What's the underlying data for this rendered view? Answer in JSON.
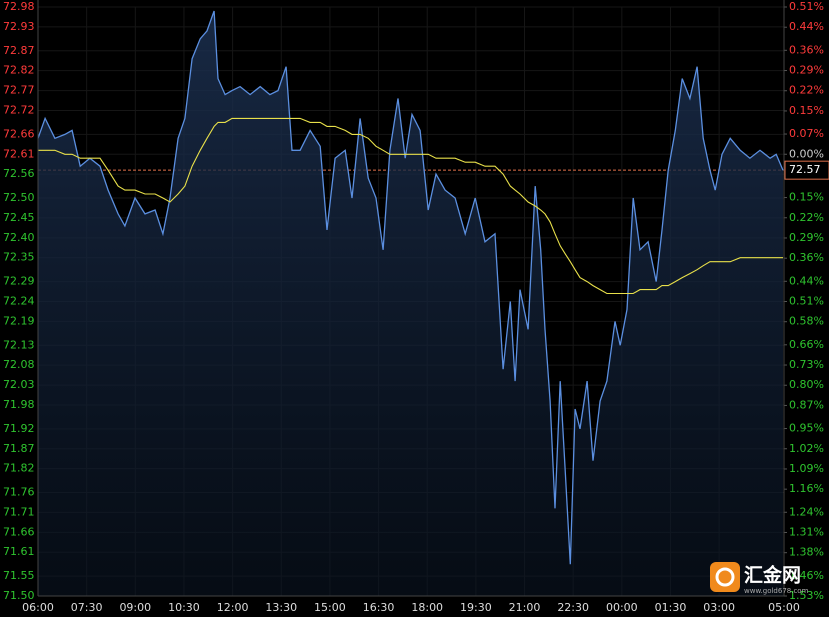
{
  "chart_data": {
    "type": "line",
    "xlim": [
      0,
      23
    ],
    "xticks": [
      {
        "value": 0,
        "label": "06:00"
      },
      {
        "value": 1.5,
        "label": "07:30"
      },
      {
        "value": 3,
        "label": "09:00"
      },
      {
        "value": 4.5,
        "label": "10:30"
      },
      {
        "value": 6,
        "label": "12:00"
      },
      {
        "value": 7.5,
        "label": "13:30"
      },
      {
        "value": 9,
        "label": "15:00"
      },
      {
        "value": 10.5,
        "label": "16:30"
      },
      {
        "value": 12,
        "label": "18:00"
      },
      {
        "value": 13.5,
        "label": "19:30"
      },
      {
        "value": 15,
        "label": "21:00"
      },
      {
        "value": 16.5,
        "label": "22:30"
      },
      {
        "value": 18,
        "label": "00:00"
      },
      {
        "value": 19.5,
        "label": "01:30"
      },
      {
        "value": 21,
        "label": "03:00"
      },
      {
        "value": 23,
        "label": "05:00"
      }
    ],
    "ylim": [
      71.5,
      72.98
    ],
    "yticks": [
      72.98,
      72.93,
      72.87,
      72.82,
      72.77,
      72.72,
      72.66,
      72.61,
      72.56,
      {
        "value": 72.5,
        "label": "72.50"
      },
      72.45,
      {
        "value": 72.4,
        "label": "72.40"
      },
      72.35,
      72.29,
      72.24,
      72.19,
      72.13,
      72.08,
      72.03,
      71.98,
      71.92,
      71.87,
      71.82,
      71.76,
      71.71,
      71.66,
      71.61,
      71.55,
      {
        "value": 71.5,
        "label": "71.50"
      }
    ],
    "y2lim": [
      -1.53,
      0.51
    ],
    "y2ticks": [
      {
        "value": 0.51,
        "label": "0.51%"
      },
      {
        "value": 0.44,
        "label": "0.44%"
      },
      {
        "value": 0.36,
        "label": "0.36%"
      },
      {
        "value": 0.29,
        "label": "0.29%"
      },
      {
        "value": 0.22,
        "label": "0.22%"
      },
      {
        "value": 0.15,
        "label": "0.15%"
      },
      {
        "value": 0.07,
        "label": "0.07%"
      },
      {
        "value": 0,
        "label": "0.00%"
      },
      {
        "value": -0.15,
        "label": "0.15%"
      },
      {
        "value": -0.22,
        "label": "0.22%"
      },
      {
        "value": -0.29,
        "label": "0.29%"
      },
      {
        "value": -0.36,
        "label": "0.36%"
      },
      {
        "value": -0.44,
        "label": "0.44%"
      },
      {
        "value": -0.51,
        "label": "0.51%"
      },
      {
        "value": -0.58,
        "label": "0.58%"
      },
      {
        "value": -0.66,
        "label": "0.66%"
      },
      {
        "value": -0.73,
        "label": "0.73%"
      },
      {
        "value": -0.8,
        "label": "0.80%"
      },
      {
        "value": -0.87,
        "label": "0.87%"
      },
      {
        "value": -0.95,
        "label": "0.95%"
      },
      {
        "value": -1.02,
        "label": "1.02%"
      },
      {
        "value": -1.09,
        "label": "1.09%"
      },
      {
        "value": -1.16,
        "label": "1.16%"
      },
      {
        "value": -1.24,
        "label": "1.24%"
      },
      {
        "value": -1.31,
        "label": "1.31%"
      },
      {
        "value": -1.38,
        "label": "1.38%"
      },
      {
        "value": -1.46,
        "label": "1.46%"
      },
      {
        "value": -1.53,
        "label": "1.53%"
      }
    ],
    "ref_price": 72.57,
    "grid": true,
    "x": [
      0,
      0.22,
      0.52,
      0.83,
      1.05,
      1.3,
      1.6,
      1.91,
      2.16,
      2.47,
      2.68,
      2.99,
      3.3,
      3.61,
      3.85,
      4.07,
      4.32,
      4.53,
      4.75,
      5,
      5.21,
      5.43,
      5.55,
      5.77,
      5.98,
      6.23,
      6.54,
      6.85,
      7.15,
      7.4,
      7.65,
      7.83,
      8.08,
      8.39,
      8.7,
      8.91,
      9.16,
      9.47,
      9.68,
      9.93,
      10.18,
      10.42,
      10.64,
      10.85,
      11.1,
      11.32,
      11.53,
      11.78,
      12.03,
      12.27,
      12.55,
      12.86,
      13.17,
      13.48,
      13.78,
      14.09,
      14.34,
      14.56,
      14.71,
      14.86,
      15.11,
      15.33,
      15.5,
      15.63,
      15.79,
      15.94,
      16.1,
      16.25,
      16.41,
      16.56,
      16.71,
      16.93,
      17.11,
      17.33,
      17.54,
      17.79,
      17.95,
      18.16,
      18.35,
      18.56,
      18.81,
      19.06,
      19.24,
      19.43,
      19.65,
      19.86,
      20.1,
      20.32,
      20.51,
      20.72,
      20.88,
      21.09,
      21.34,
      21.65,
      21.95,
      22.26,
      22.57,
      22.76,
      22.97
    ],
    "series": [
      {
        "name": "price",
        "color": "#5b8fe0",
        "values": [
          72.65,
          72.7,
          72.65,
          72.66,
          72.67,
          72.58,
          72.6,
          72.58,
          72.52,
          72.46,
          72.43,
          72.5,
          72.46,
          72.47,
          72.41,
          72.5,
          72.65,
          72.7,
          72.85,
          72.9,
          72.92,
          72.97,
          72.8,
          72.76,
          72.77,
          72.78,
          72.76,
          72.78,
          72.76,
          72.77,
          72.83,
          72.62,
          72.62,
          72.67,
          72.63,
          72.42,
          72.6,
          72.62,
          72.5,
          72.7,
          72.55,
          72.5,
          72.37,
          72.62,
          72.75,
          72.6,
          72.71,
          72.67,
          72.47,
          72.56,
          72.52,
          72.5,
          72.41,
          72.5,
          72.39,
          72.41,
          72.07,
          72.24,
          72.04,
          72.27,
          72.17,
          72.53,
          72.37,
          72.17,
          71.99,
          71.72,
          72.04,
          71.82,
          71.58,
          71.97,
          71.92,
          72.04,
          71.84,
          71.99,
          72.04,
          72.19,
          72.13,
          72.22,
          72.5,
          72.37,
          72.39,
          72.29,
          72.42,
          72.57,
          72.67,
          72.8,
          72.75,
          72.83,
          72.65,
          72.57,
          72.52,
          72.61,
          72.65,
          72.62,
          72.6,
          72.62,
          72.6,
          72.61,
          72.57
        ]
      },
      {
        "name": "average",
        "color": "#e8e04a",
        "values": [
          72.62,
          72.62,
          72.62,
          72.61,
          72.61,
          72.6,
          72.6,
          72.6,
          72.57,
          72.53,
          72.52,
          72.52,
          72.51,
          72.51,
          72.5,
          72.49,
          72.51,
          72.53,
          72.58,
          72.62,
          72.65,
          72.68,
          72.69,
          72.69,
          72.7,
          72.7,
          72.7,
          72.7,
          72.7,
          72.7,
          72.7,
          72.7,
          72.7,
          72.69,
          72.69,
          72.68,
          72.68,
          72.67,
          72.66,
          72.66,
          72.65,
          72.63,
          72.62,
          72.61,
          72.61,
          72.61,
          72.61,
          72.61,
          72.61,
          72.6,
          72.6,
          72.6,
          72.59,
          72.59,
          72.58,
          72.58,
          72.56,
          72.53,
          72.52,
          72.51,
          72.49,
          72.48,
          72.47,
          72.46,
          72.44,
          72.41,
          72.38,
          72.36,
          72.34,
          72.32,
          72.3,
          72.29,
          72.28,
          72.27,
          72.26,
          72.26,
          72.26,
          72.26,
          72.26,
          72.27,
          72.27,
          72.27,
          72.28,
          72.28,
          72.29,
          72.3,
          72.31,
          72.32,
          72.33,
          72.34,
          72.34,
          72.34,
          72.34,
          72.35,
          72.35,
          72.35,
          72.35,
          72.35,
          72.35
        ]
      }
    ],
    "watermark": {
      "brand": "汇金网",
      "url": "www.gold678.com"
    }
  }
}
